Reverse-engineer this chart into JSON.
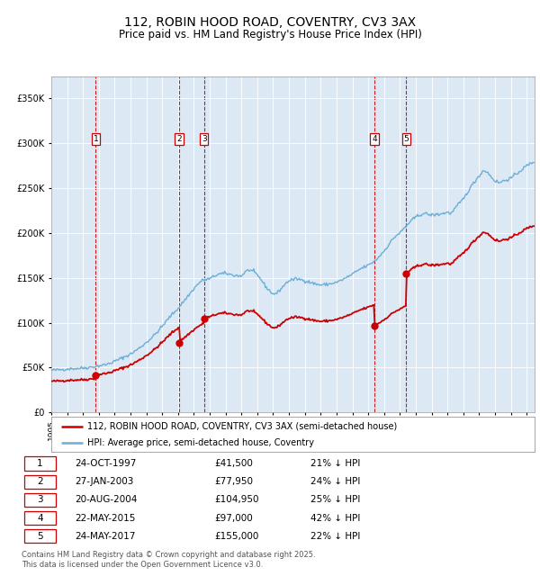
{
  "title": "112, ROBIN HOOD ROAD, COVENTRY, CV3 3AX",
  "subtitle": "Price paid vs. HM Land Registry's House Price Index (HPI)",
  "title_fontsize": 10,
  "subtitle_fontsize": 8.5,
  "plot_bg_color": "#dce9f5",
  "ylim": [
    0,
    375000
  ],
  "yticks": [
    0,
    50000,
    100000,
    150000,
    200000,
    250000,
    300000,
    350000
  ],
  "ytick_labels": [
    "£0",
    "£50K",
    "£100K",
    "£150K",
    "£200K",
    "£250K",
    "£300K",
    "£350K"
  ],
  "hpi_color": "#6baed6",
  "price_color": "#cc0000",
  "vline_color": "#cc0000",
  "transactions": [
    {
      "id": 1,
      "date_num": 1997.81,
      "price": 41500,
      "label": "1"
    },
    {
      "id": 2,
      "date_num": 2003.07,
      "price": 77950,
      "label": "2"
    },
    {
      "id": 3,
      "date_num": 2004.64,
      "price": 104950,
      "label": "3"
    },
    {
      "id": 4,
      "date_num": 2015.39,
      "price": 97000,
      "label": "4"
    },
    {
      "id": 5,
      "date_num": 2017.39,
      "price": 155000,
      "label": "5"
    }
  ],
  "legend_price_label": "112, ROBIN HOOD ROAD, COVENTRY, CV3 3AX (semi-detached house)",
  "legend_hpi_label": "HPI: Average price, semi-detached house, Coventry",
  "table_rows": [
    [
      "1",
      "24-OCT-1997",
      "£41,500",
      "21% ↓ HPI"
    ],
    [
      "2",
      "27-JAN-2003",
      "£77,950",
      "24% ↓ HPI"
    ],
    [
      "3",
      "20-AUG-2004",
      "£104,950",
      "25% ↓ HPI"
    ],
    [
      "4",
      "22-MAY-2015",
      "£97,000",
      "42% ↓ HPI"
    ],
    [
      "5",
      "24-MAY-2017",
      "£155,000",
      "22% ↓ HPI"
    ]
  ],
  "footnote": "Contains HM Land Registry data © Crown copyright and database right 2025.\nThis data is licensed under the Open Government Licence v3.0.",
  "xmin": 1995,
  "xmax": 2025.5
}
